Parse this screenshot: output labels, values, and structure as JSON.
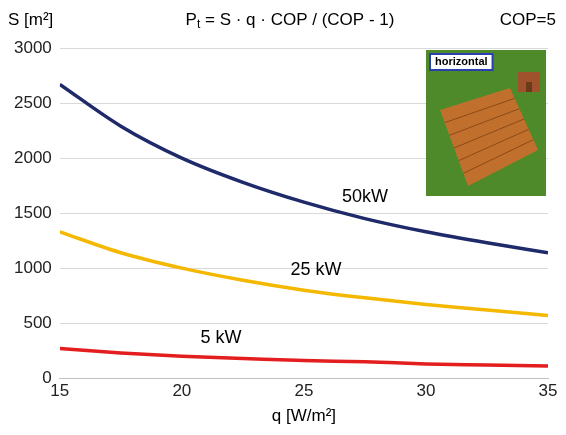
{
  "chart_data": {
    "type": "line",
    "title": "Pt = S · q · COP / (COP - 1)",
    "x_label": "q [W/m²]",
    "y_label": "S [m²]",
    "annotations": [
      "COP=5",
      "horizontal"
    ],
    "x": [
      15,
      17.5,
      20,
      22.5,
      25,
      27.5,
      30,
      32.5,
      35
    ],
    "series": [
      {
        "name": "50kW",
        "color": "#1f2a6b",
        "values": [
          2670,
          2290,
          2000,
          1780,
          1600,
          1450,
          1330,
          1230,
          1140
        ]
      },
      {
        "name": "25 kW",
        "color": "#f5b800",
        "values": [
          1330,
          1140,
          1000,
          890,
          800,
          730,
          670,
          620,
          570
        ]
      },
      {
        "name": "5 kW",
        "color": "#e41e1e",
        "values": [
          270,
          230,
          200,
          180,
          160,
          150,
          130,
          120,
          110
        ]
      }
    ],
    "xlim": [
      15,
      35
    ],
    "xticks": [
      15,
      20,
      25,
      30,
      35
    ],
    "ylim": [
      0,
      3000
    ],
    "yticks": [
      0,
      500,
      1000,
      1500,
      2000,
      2500,
      3000
    ],
    "grid": "y"
  }
}
